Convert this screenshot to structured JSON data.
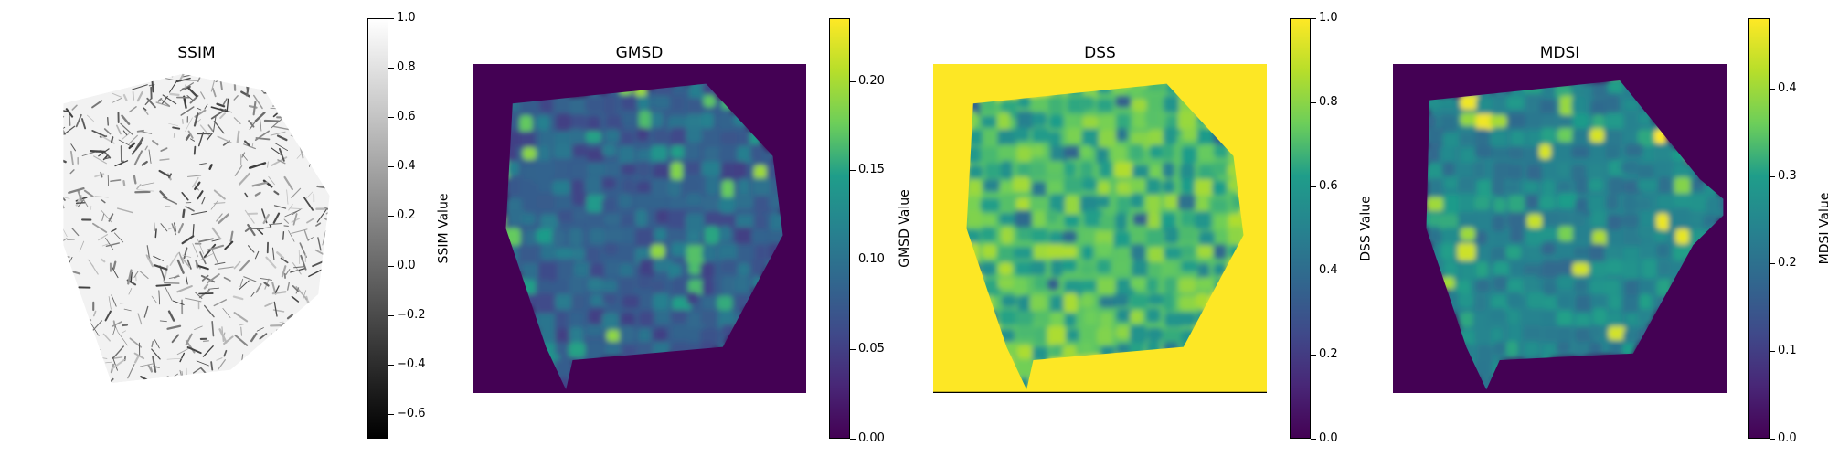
{
  "chart_data": [
    {
      "type": "heatmap",
      "title": "SSIM",
      "colorbar_label": "SSIM Value",
      "colormap": "gray",
      "vmin": -0.7,
      "vmax": 1.0,
      "ticks": [
        1.0,
        0.8,
        0.6,
        0.4,
        0.2,
        0.0,
        -0.2,
        -0.4,
        -0.6
      ],
      "tick_labels": [
        "1.0",
        "0.8",
        "0.6",
        "0.4",
        "0.2",
        "0.0",
        "−0.2",
        "−0.4",
        "−0.6"
      ],
      "axis": "off",
      "background": "#ffffff"
    },
    {
      "type": "heatmap",
      "title": "GMSD",
      "colorbar_label": "GMSD Value",
      "colormap": "viridis",
      "vmin": 0.0,
      "vmax": 0.235,
      "ticks": [
        0.0,
        0.05,
        0.1,
        0.15,
        0.2
      ],
      "tick_labels": [
        "0.00",
        "0.05",
        "0.10",
        "0.15",
        "0.20"
      ],
      "axis": "off",
      "background": "#440154"
    },
    {
      "type": "heatmap",
      "title": "DSS",
      "colorbar_label": "DSS Value",
      "colormap": "viridis",
      "vmin": 0.0,
      "vmax": 1.0,
      "ticks": [
        0.0,
        0.2,
        0.4,
        0.6,
        0.8,
        1.0
      ],
      "tick_labels": [
        "0.0",
        "0.2",
        "0.4",
        "0.6",
        "0.8",
        "1.0"
      ],
      "axis": "off",
      "background": "#fde725"
    },
    {
      "type": "heatmap",
      "title": "MDSI",
      "colorbar_label": "MDSI Value",
      "colormap": "viridis",
      "vmin": 0.0,
      "vmax": 0.48,
      "ticks": [
        0.0,
        0.1,
        0.2,
        0.3,
        0.4
      ],
      "tick_labels": [
        "0.0",
        "0.1",
        "0.2",
        "0.3",
        "0.4"
      ],
      "axis": "off",
      "background": "#440154"
    }
  ]
}
